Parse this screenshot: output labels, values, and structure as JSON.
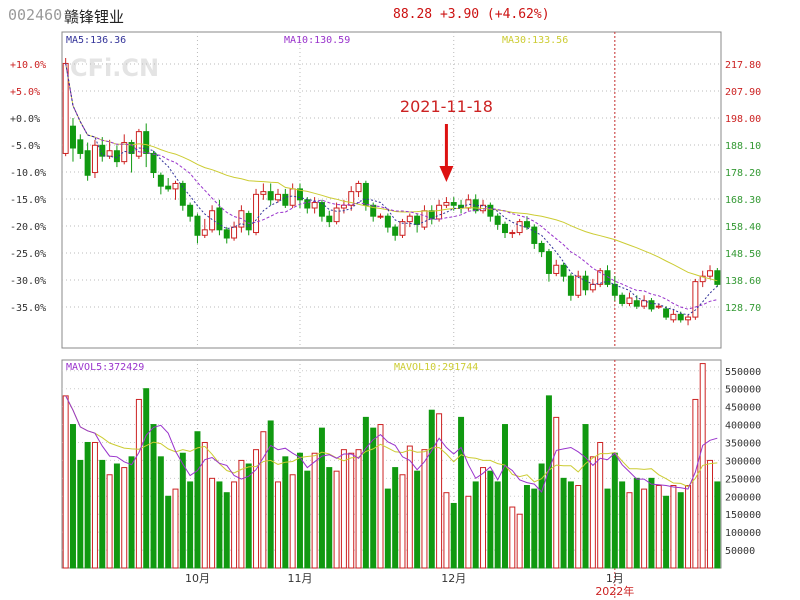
{
  "header": {
    "code": "002460",
    "name": "赣锋锂业",
    "quote": "88.28 +3.90 (+4.62%)"
  },
  "colors": {
    "up": "#cc2222",
    "down": "#119911",
    "ma5": "#333399",
    "ma10": "#9933cc",
    "ma30": "#cccc33",
    "vline": "#cc3333"
  },
  "chart_data": [
    {
      "type": "candlestick",
      "title": "",
      "ma_labels": [
        "MA5:136.36",
        "MA10:130.59",
        "MA30:133.56"
      ],
      "pct_labels": [
        "+10.0%",
        "+5.0%",
        "+0.0%",
        "-5.0%",
        "-10.0%",
        "-15.0%",
        "-20.0%",
        "-25.0%",
        "-30.0%",
        "-35.0%"
      ],
      "price_labels": [
        "217.80",
        "207.90",
        "198.00",
        "188.10",
        "178.20",
        "168.30",
        "158.40",
        "148.50",
        "138.60",
        "128.70"
      ],
      "ylim": [
        119.5,
        227.0
      ],
      "annotation": {
        "text": "2021-11-18",
        "index": 52
      },
      "watermark": "CFi.CN",
      "candles": [
        [
          185,
          218,
          220,
          184
        ],
        [
          195,
          187,
          198,
          182
        ],
        [
          190,
          185,
          192,
          183
        ],
        [
          186,
          177,
          189,
          175
        ],
        [
          178,
          188,
          190,
          176
        ],
        [
          188,
          184,
          191,
          182
        ],
        [
          184,
          186,
          190,
          183
        ],
        [
          186,
          182,
          188,
          180
        ],
        [
          182,
          189,
          192,
          181
        ],
        [
          189,
          185,
          190,
          178
        ],
        [
          184,
          193,
          194,
          183
        ],
        [
          193,
          185,
          196,
          180
        ],
        [
          185,
          178,
          186,
          176
        ],
        [
          177,
          173,
          178,
          170
        ],
        [
          173,
          172,
          176,
          171
        ],
        [
          172,
          174,
          175,
          168
        ],
        [
          174,
          166,
          175,
          164
        ],
        [
          166,
          162,
          167,
          160
        ],
        [
          162,
          155,
          163,
          152
        ],
        [
          155,
          157,
          161,
          154
        ],
        [
          157,
          164,
          166,
          156
        ],
        [
          165,
          157,
          168,
          155
        ],
        [
          157,
          154,
          158,
          152
        ],
        [
          154,
          158,
          160,
          153
        ],
        [
          158,
          164,
          166,
          156
        ],
        [
          163,
          157,
          164,
          155
        ],
        [
          156,
          170,
          172,
          155
        ],
        [
          170,
          171,
          174,
          168
        ],
        [
          171,
          168,
          174,
          166
        ],
        [
          168,
          170,
          172,
          167
        ],
        [
          170,
          166,
          172,
          165
        ],
        [
          166,
          172,
          174,
          165
        ],
        [
          172,
          168,
          174,
          165
        ],
        [
          168,
          165,
          169,
          163
        ],
        [
          165,
          167,
          169,
          163
        ],
        [
          167,
          162,
          168,
          160
        ],
        [
          162,
          160,
          164,
          158
        ],
        [
          160,
          165,
          167,
          159
        ],
        [
          165,
          166,
          168,
          163
        ],
        [
          166,
          171,
          173,
          164
        ],
        [
          171,
          174,
          175,
          169
        ],
        [
          174,
          166,
          175,
          164
        ],
        [
          166,
          162,
          167,
          160
        ],
        [
          162,
          162,
          163,
          161
        ],
        [
          162,
          158,
          163,
          156
        ],
        [
          158,
          155,
          159,
          153
        ],
        [
          155,
          160,
          161,
          154
        ],
        [
          160,
          162,
          163,
          158
        ],
        [
          162,
          159,
          163,
          156
        ],
        [
          158,
          164,
          166,
          157
        ],
        [
          164,
          161,
          166,
          159
        ],
        [
          161,
          166,
          168,
          160
        ],
        [
          166,
          167,
          169,
          165
        ],
        [
          167,
          166,
          169,
          164
        ],
        [
          166,
          165,
          168,
          163
        ],
        [
          165,
          168,
          170,
          164
        ],
        [
          168,
          164,
          170,
          163
        ],
        [
          164,
          166,
          168,
          163
        ],
        [
          166,
          162,
          167,
          160
        ],
        [
          162,
          159,
          163,
          157
        ],
        [
          159,
          156,
          160,
          154
        ],
        [
          156,
          156,
          157,
          154
        ],
        [
          156,
          160,
          161,
          155
        ],
        [
          160,
          158,
          162,
          157
        ],
        [
          158,
          152,
          159,
          150
        ],
        [
          152,
          149,
          153,
          147
        ],
        [
          149,
          141,
          150,
          138
        ],
        [
          141,
          144,
          146,
          140
        ],
        [
          144,
          140,
          145,
          138
        ],
        [
          140,
          133,
          141,
          131
        ],
        [
          133,
          140,
          142,
          132
        ],
        [
          140,
          135,
          142,
          133
        ],
        [
          135,
          137,
          139,
          134
        ],
        [
          137,
          142,
          143,
          136
        ],
        [
          142,
          137,
          144,
          136
        ],
        [
          137,
          133,
          140,
          131
        ],
        [
          133,
          130,
          134,
          129
        ],
        [
          130,
          132,
          134,
          129
        ],
        [
          131,
          129,
          133,
          128
        ],
        [
          129,
          131,
          133,
          128
        ],
        [
          131,
          128,
          132,
          127
        ],
        [
          129,
          129,
          130,
          128
        ],
        [
          128,
          125,
          129,
          124
        ],
        [
          124,
          126,
          128,
          123
        ],
        [
          126,
          124,
          127,
          123
        ],
        [
          124,
          125,
          126,
          122
        ],
        [
          125,
          138,
          139,
          124
        ],
        [
          138,
          140,
          142,
          136
        ],
        [
          140,
          142,
          144,
          139
        ],
        [
          142,
          137,
          143,
          136
        ]
      ]
    },
    {
      "type": "bar",
      "title": "",
      "ma_labels": [
        "MAVOL5:372429",
        "MAVOL10:291744"
      ],
      "ylabels": [
        "550000",
        "500000",
        "450000",
        "400000",
        "350000",
        "300000",
        "250000",
        "200000",
        "150000",
        "100000",
        "50000"
      ],
      "ylim": [
        0,
        580000
      ],
      "xlabels": [
        {
          "text": "10月",
          "index": 18
        },
        {
          "text": "11月",
          "index": 32
        },
        {
          "text": "12月",
          "index": 53
        },
        {
          "text": "1月",
          "index": 75
        },
        {
          "text": "2022年",
          "index": 75
        }
      ],
      "month_marker_index": 75,
      "volumes": [
        480000,
        400000,
        300000,
        350000,
        350000,
        300000,
        260000,
        290000,
        280000,
        310000,
        470000,
        500000,
        400000,
        310000,
        200000,
        220000,
        320000,
        240000,
        380000,
        350000,
        250000,
        240000,
        210000,
        240000,
        300000,
        290000,
        330000,
        380000,
        410000,
        240000,
        310000,
        260000,
        320000,
        270000,
        320000,
        390000,
        280000,
        270000,
        330000,
        320000,
        330000,
        420000,
        390000,
        400000,
        220000,
        280000,
        260000,
        340000,
        270000,
        330000,
        440000,
        430000,
        210000,
        180000,
        420000,
        200000,
        240000,
        280000,
        270000,
        240000,
        400000,
        170000,
        150000,
        230000,
        220000,
        290000,
        480000,
        420000,
        250000,
        240000,
        230000,
        400000,
        310000,
        350000,
        220000,
        320000,
        240000,
        210000,
        250000,
        220000,
        250000,
        230000,
        200000,
        230000,
        210000,
        230000,
        470000,
        570000,
        300000,
        240000
      ]
    }
  ]
}
